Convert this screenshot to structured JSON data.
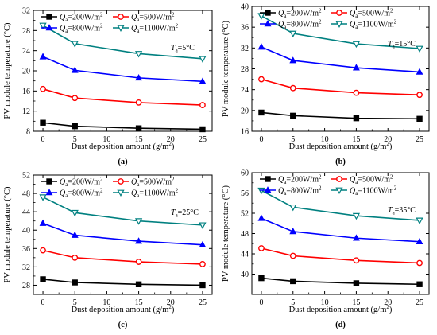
{
  "chart_data": [
    {
      "type": "line",
      "caption": "(a)",
      "xlabel": "Dust deposition amount (g/m2)",
      "ylabel": "PV module temperature (°C)",
      "xlim": [
        -1.5,
        26.5
      ],
      "ylim": [
        8,
        32
      ],
      "xticks": [
        0,
        5,
        10,
        15,
        20,
        25
      ],
      "yticks": [
        8,
        12,
        16,
        20,
        24,
        28,
        32
      ],
      "annotation": "Ta=5°C",
      "x": [
        0,
        5,
        15,
        25
      ],
      "series": [
        {
          "name": "Qa=200W/m2",
          "values": [
            9.7,
            9.0,
            8.6,
            8.4
          ]
        },
        {
          "name": "Qa=500W/m2",
          "values": [
            16.4,
            14.6,
            13.7,
            13.2
          ]
        },
        {
          "name": "Qa=800W/m2",
          "values": [
            22.8,
            20.1,
            18.6,
            17.9
          ]
        },
        {
          "name": "Qa=1100W/m2",
          "values": [
            29.0,
            25.4,
            23.4,
            22.4
          ]
        }
      ]
    },
    {
      "type": "line",
      "caption": "(b)",
      "xlabel": "Dust deposition amount (g/m2)",
      "ylabel": "PV module temperature (°C)",
      "xlim": [
        -1.5,
        26.5
      ],
      "ylim": [
        16,
        40
      ],
      "xticks": [
        0,
        5,
        10,
        15,
        20,
        25
      ],
      "yticks": [
        16,
        20,
        24,
        28,
        32,
        36,
        40
      ],
      "annotation": "Ta=15°C",
      "x": [
        0,
        5,
        15,
        25
      ],
      "series": [
        {
          "name": "Qa=200W/m2",
          "values": [
            19.6,
            19.0,
            18.5,
            18.4
          ]
        },
        {
          "name": "Qa=500W/m2",
          "values": [
            26.0,
            24.3,
            23.4,
            23.0
          ]
        },
        {
          "name": "Qa=800W/m2",
          "values": [
            32.2,
            29.6,
            28.2,
            27.4
          ]
        },
        {
          "name": "Qa=1100W/m2",
          "values": [
            38.2,
            34.8,
            32.8,
            31.9
          ]
        }
      ]
    },
    {
      "type": "line",
      "caption": "(c)",
      "xlabel": "Dust deposition amount (g/m2)",
      "ylabel": "PV module temperature (°C)",
      "xlim": [
        -1.5,
        26.5
      ],
      "ylim": [
        26,
        52
      ],
      "xticks": [
        0,
        5,
        10,
        15,
        20,
        25
      ],
      "yticks": [
        28,
        32,
        36,
        40,
        44,
        48,
        52
      ],
      "annotation": "Ta=25°C",
      "x": [
        0,
        5,
        15,
        25
      ],
      "series": [
        {
          "name": "Qa=200W/m2",
          "values": [
            29.3,
            28.6,
            28.2,
            28.0
          ]
        },
        {
          "name": "Qa=500W/m2",
          "values": [
            35.6,
            34.0,
            33.1,
            32.6
          ]
        },
        {
          "name": "Qa=800W/m2",
          "values": [
            41.5,
            38.9,
            37.6,
            36.8
          ]
        },
        {
          "name": "Qa=1100W/m2",
          "values": [
            47.2,
            43.8,
            42.0,
            41.1
          ]
        }
      ]
    },
    {
      "type": "line",
      "caption": "(d)",
      "xlabel": "Dust deposition amount (g/m2)",
      "ylabel": "PV module temperature (°C)",
      "xlim": [
        -1.5,
        26.5
      ],
      "ylim": [
        36,
        60
      ],
      "xticks": [
        0,
        5,
        10,
        15,
        20,
        25
      ],
      "yticks": [
        40,
        44,
        48,
        52,
        56,
        60
      ],
      "annotation": "Ta=35°C",
      "x": [
        0,
        5,
        15,
        25
      ],
      "series": [
        {
          "name": "Qa=200W/m2",
          "values": [
            39.2,
            38.6,
            38.2,
            38.0
          ]
        },
        {
          "name": "Qa=500W/m2",
          "values": [
            45.1,
            43.6,
            42.7,
            42.2
          ]
        },
        {
          "name": "Qa=800W/m2",
          "values": [
            51.0,
            48.4,
            47.1,
            46.4
          ]
        },
        {
          "name": "Qa=1100W/m2",
          "values": [
            56.5,
            53.2,
            51.5,
            50.6
          ]
        }
      ]
    }
  ],
  "styles": {
    "series_colors": [
      "#000000",
      "#ff0000",
      "#0000ff",
      "#008080"
    ],
    "series_markers": [
      "square",
      "circle",
      "triangle-up",
      "triangle-down"
    ]
  }
}
